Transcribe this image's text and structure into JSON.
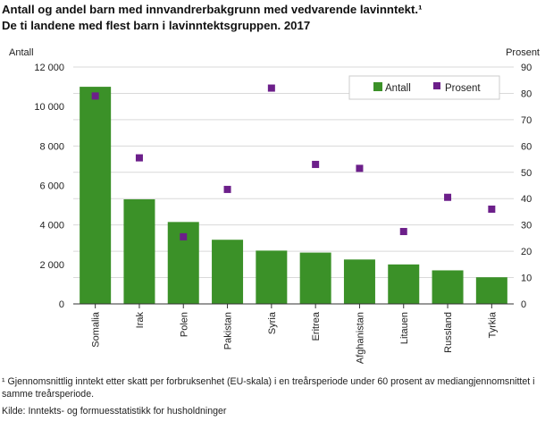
{
  "chart_data": {
    "type": "bar",
    "title": "Antall og andel barn med innvandrerbakgrunn med vedvarende lavinntekt.¹",
    "subtitle": "De ti landene med flest barn i lavinntektsgruppen. 2017",
    "ylabel": "Antall",
    "y2label": "Prosent",
    "categories": [
      "Somalia",
      "Irak",
      "Polen",
      "Pakistan",
      "Syria",
      "Eritrea",
      "Afghanistan",
      "Litauen",
      "Russland",
      "Tyrkia"
    ],
    "series": [
      {
        "name": "Antall",
        "type": "bar",
        "axis": "left",
        "color": "#3b9128",
        "values": [
          11000,
          5300,
          4150,
          3250,
          2700,
          2600,
          2250,
          2000,
          1700,
          1350
        ]
      },
      {
        "name": "Prosent",
        "type": "scatter",
        "axis": "right",
        "color": "#6c1f8a",
        "values": [
          79,
          55.5,
          25.5,
          43.5,
          82,
          53,
          51.5,
          27.5,
          40.5,
          36
        ]
      }
    ],
    "ylim": [
      0,
      12000
    ],
    "yticks": [
      0,
      2000,
      4000,
      6000,
      8000,
      10000,
      12000
    ],
    "ytick_labels": [
      "0",
      "2 000",
      "4 000",
      "6 000",
      "8 000",
      "10 000",
      "12 000"
    ],
    "y2lim": [
      0,
      90
    ],
    "y2ticks": [
      0,
      10,
      20,
      30,
      40,
      50,
      60,
      70,
      80,
      90
    ],
    "y2tick_labels": [
      "0",
      "10",
      "20",
      "30",
      "40",
      "50",
      "60",
      "70",
      "80",
      "90"
    ],
    "grid": true,
    "legend": "top-right"
  },
  "footnote": "¹ Gjennomsnittlig inntekt etter skatt per forbruksenhet (EU-skala) i en treårsperiode under 60 prosent av mediangjennomsnittet i samme treårsperiode.",
  "source": "Kilde: Inntekts- og formuesstatistikk for husholdninger"
}
